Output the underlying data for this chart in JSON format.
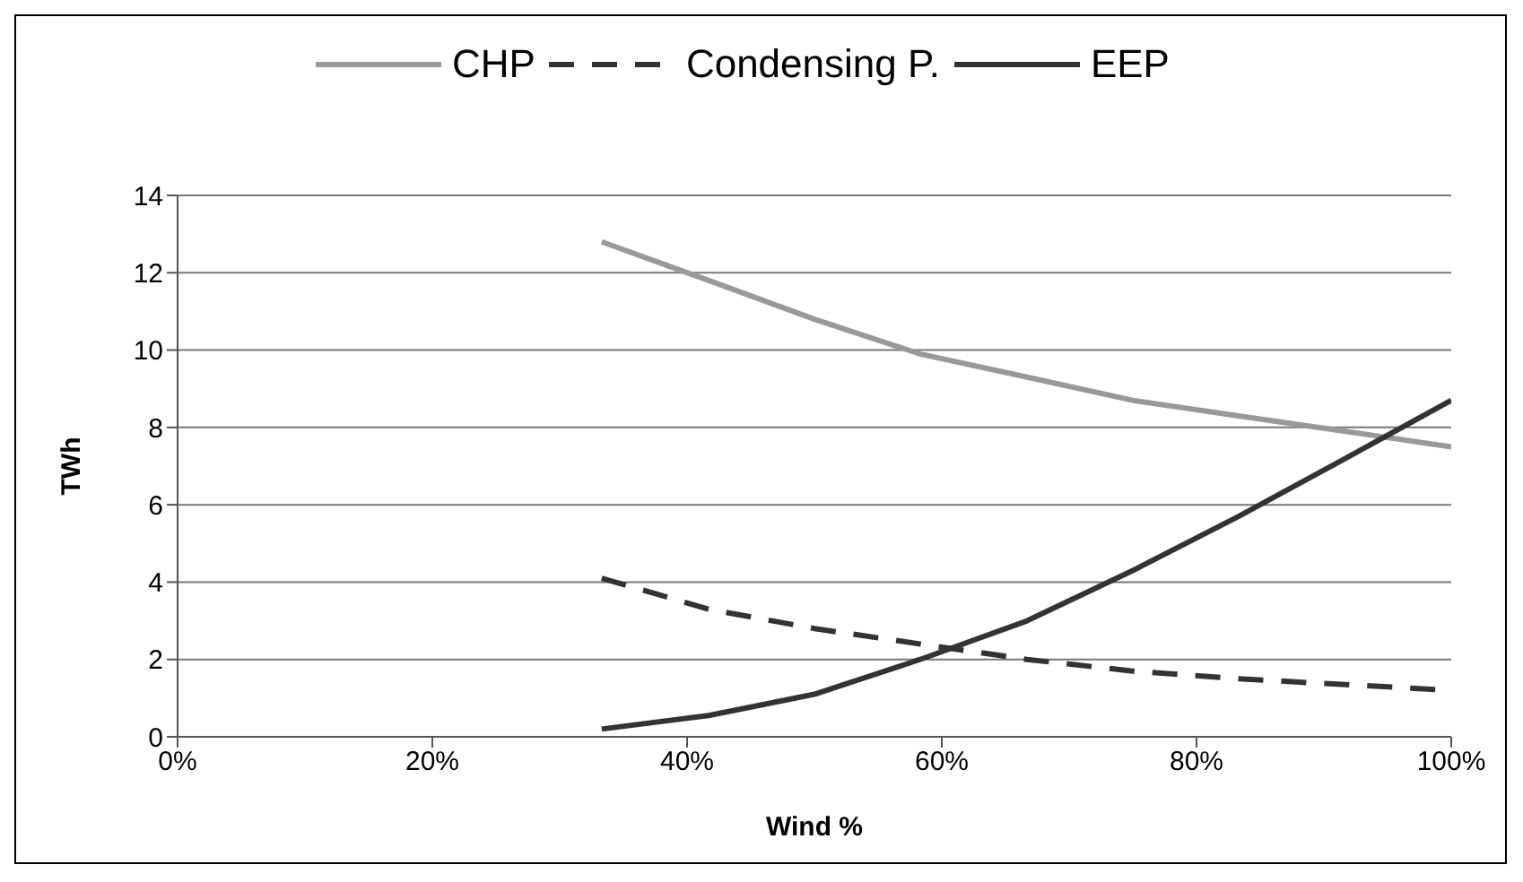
{
  "chart_data": {
    "type": "line",
    "xlabel": "Wind %",
    "ylabel": "TWh",
    "x": [
      33.3,
      41.7,
      50,
      58.3,
      66.7,
      75,
      83.3,
      91.7,
      100
    ],
    "xlim": [
      0,
      100
    ],
    "xticks": [
      {
        "value": 0,
        "label": "0%"
      },
      {
        "value": 20,
        "label": "20%"
      },
      {
        "value": 40,
        "label": "40%"
      },
      {
        "value": 60,
        "label": "60%"
      },
      {
        "value": 80,
        "label": "80%"
      },
      {
        "value": 100,
        "label": "100%"
      }
    ],
    "ylim": [
      0,
      14
    ],
    "yticks": [
      0,
      2,
      4,
      6,
      8,
      10,
      12,
      14
    ],
    "grid": "y",
    "legend": "top",
    "marker": "none",
    "series": [
      {
        "name": "CHP",
        "color": "#999999",
        "values": [
          12.8,
          11.8,
          10.8,
          9.9,
          9.3,
          8.7,
          8.3,
          7.9,
          7.5
        ]
      },
      {
        "name": "Condensing P.",
        "color": "#333333",
        "line_style": "dashed",
        "values": [
          4.1,
          3.3,
          2.8,
          2.4,
          2.0,
          1.7,
          1.5,
          1.35,
          1.2
        ]
      },
      {
        "name": "EEP",
        "color": "#333333",
        "values": [
          0.2,
          0.55,
          1.1,
          2.0,
          3.0,
          4.3,
          5.7,
          7.2,
          8.7
        ]
      }
    ]
  }
}
